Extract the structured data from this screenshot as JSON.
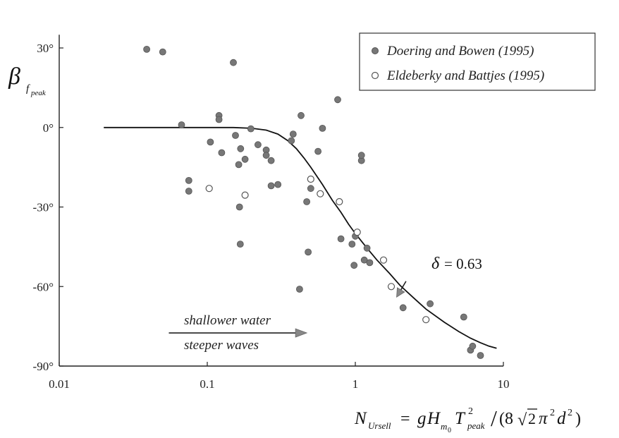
{
  "chart_data": {
    "type": "scatter",
    "x_scale": "log",
    "xlim": [
      0.01,
      10
    ],
    "ylim": [
      -90,
      35
    ],
    "x_ticks": [
      {
        "value": 0.01,
        "label": "0.01"
      },
      {
        "value": 0.1,
        "label": "0.1"
      },
      {
        "value": 1,
        "label": "1"
      },
      {
        "value": 10,
        "label": "10"
      }
    ],
    "y_ticks": [
      {
        "value": 30,
        "label": "30°"
      },
      {
        "value": 0,
        "label": "0°"
      },
      {
        "value": -30,
        "label": "-30°"
      },
      {
        "value": -60,
        "label": "-60°"
      },
      {
        "value": -90,
        "label": "-90°"
      }
    ],
    "ylabel": {
      "main": "β",
      "sub": "f",
      "subsub": "peak"
    },
    "xlabel": {
      "lhs": "N",
      "lhs_sub": "Ursell",
      "eq": "=",
      "g": "g",
      "H": "H",
      "H_sub": "m",
      "H_subsub": "0",
      "T": "T",
      "T_sup": "2",
      "T_sub": "peak",
      "slash": "/",
      "open": "(8",
      "sqrt": "√",
      "sqrt_arg": "2",
      "pi": "π",
      "pi_sup": "2",
      "d": "d",
      "d_sup": "2",
      "close": ")"
    },
    "legend": {
      "position": "top-right",
      "entries": [
        {
          "label": "Doering and Bowen (1995)",
          "marker": "filled-circle"
        },
        {
          "label": "Eldeberky and Battjes (1995)",
          "marker": "open-circle"
        }
      ]
    },
    "series": [
      {
        "name": "Doering and Bowen (1995)",
        "marker": "filled",
        "color": "#777777",
        "points": [
          [
            0.039,
            29.5
          ],
          [
            0.05,
            28.5
          ],
          [
            0.067,
            1
          ],
          [
            0.075,
            -20
          ],
          [
            0.075,
            -24
          ],
          [
            0.105,
            -5.5
          ],
          [
            0.12,
            4.5
          ],
          [
            0.12,
            3
          ],
          [
            0.125,
            -9.5
          ],
          [
            0.15,
            24.5
          ],
          [
            0.155,
            -3
          ],
          [
            0.163,
            -14
          ],
          [
            0.168,
            -8
          ],
          [
            0.165,
            -30
          ],
          [
            0.167,
            -44
          ],
          [
            0.18,
            -12
          ],
          [
            0.197,
            -0.5
          ],
          [
            0.22,
            -6.5
          ],
          [
            0.25,
            -8.5
          ],
          [
            0.25,
            -10.5
          ],
          [
            0.27,
            -22
          ],
          [
            0.27,
            -12.5
          ],
          [
            0.3,
            -21.5
          ],
          [
            0.38,
            -2.5
          ],
          [
            0.37,
            -5
          ],
          [
            0.42,
            -61
          ],
          [
            0.43,
            4.5
          ],
          [
            0.47,
            -28
          ],
          [
            0.48,
            -47
          ],
          [
            0.5,
            -23
          ],
          [
            0.56,
            -9
          ],
          [
            0.6,
            -0.3
          ],
          [
            0.76,
            10.5
          ],
          [
            0.8,
            -42
          ],
          [
            0.95,
            -44
          ],
          [
            0.98,
            -52
          ],
          [
            1.0,
            -41
          ],
          [
            1.1,
            -12.5
          ],
          [
            1.1,
            -10.5
          ],
          [
            1.15,
            -50
          ],
          [
            1.2,
            -45.5
          ],
          [
            1.25,
            -51
          ],
          [
            2.1,
            -68
          ],
          [
            3.2,
            -66.5
          ],
          [
            5.4,
            -71.5
          ],
          [
            6.0,
            -84
          ],
          [
            6.2,
            -82.5
          ],
          [
            7.0,
            -86
          ]
        ]
      },
      {
        "name": "Eldeberky and Battjes (1995)",
        "marker": "open",
        "color": "#888888",
        "points": [
          [
            0.103,
            -23
          ],
          [
            0.18,
            -25.5
          ],
          [
            0.5,
            -19.5
          ],
          [
            0.58,
            -25
          ],
          [
            0.78,
            -28
          ],
          [
            1.03,
            -39.5
          ],
          [
            1.55,
            -50
          ],
          [
            1.75,
            -60
          ],
          [
            3.0,
            -72.5
          ]
        ]
      }
    ],
    "curve": {
      "label": "δ = 0.63",
      "delta_symbol": "δ",
      "delta_eq": "= 0.63",
      "points": [
        [
          0.02,
          0
        ],
        [
          0.05,
          0
        ],
        [
          0.1,
          0
        ],
        [
          0.15,
          0
        ],
        [
          0.2,
          -0.3
        ],
        [
          0.25,
          -1
        ],
        [
          0.3,
          -2.5
        ],
        [
          0.35,
          -5
        ],
        [
          0.4,
          -8
        ],
        [
          0.45,
          -11.5
        ],
        [
          0.5,
          -15
        ],
        [
          0.6,
          -21.5
        ],
        [
          0.7,
          -27.5
        ],
        [
          0.8,
          -32
        ],
        [
          0.9,
          -36.5
        ],
        [
          1.0,
          -40
        ],
        [
          1.2,
          -45.5
        ],
        [
          1.4,
          -50
        ],
        [
          1.7,
          -55
        ],
        [
          2.0,
          -59.5
        ],
        [
          2.5,
          -64.5
        ],
        [
          3.0,
          -68.5
        ],
        [
          4.0,
          -73.5
        ],
        [
          5.0,
          -77
        ],
        [
          6.0,
          -79.5
        ],
        [
          7.0,
          -81.2
        ],
        [
          8.0,
          -82.5
        ],
        [
          9.0,
          -83.3
        ]
      ]
    },
    "annotation": {
      "line1": "shallower water",
      "line2": "steeper waves",
      "arrow_from_x": 0.055,
      "arrow_to_x": 0.47,
      "arrow_y": -77.5
    },
    "delta_arrow": {
      "from": [
        2.2,
        -58
      ],
      "to": [
        1.9,
        -64
      ]
    }
  }
}
